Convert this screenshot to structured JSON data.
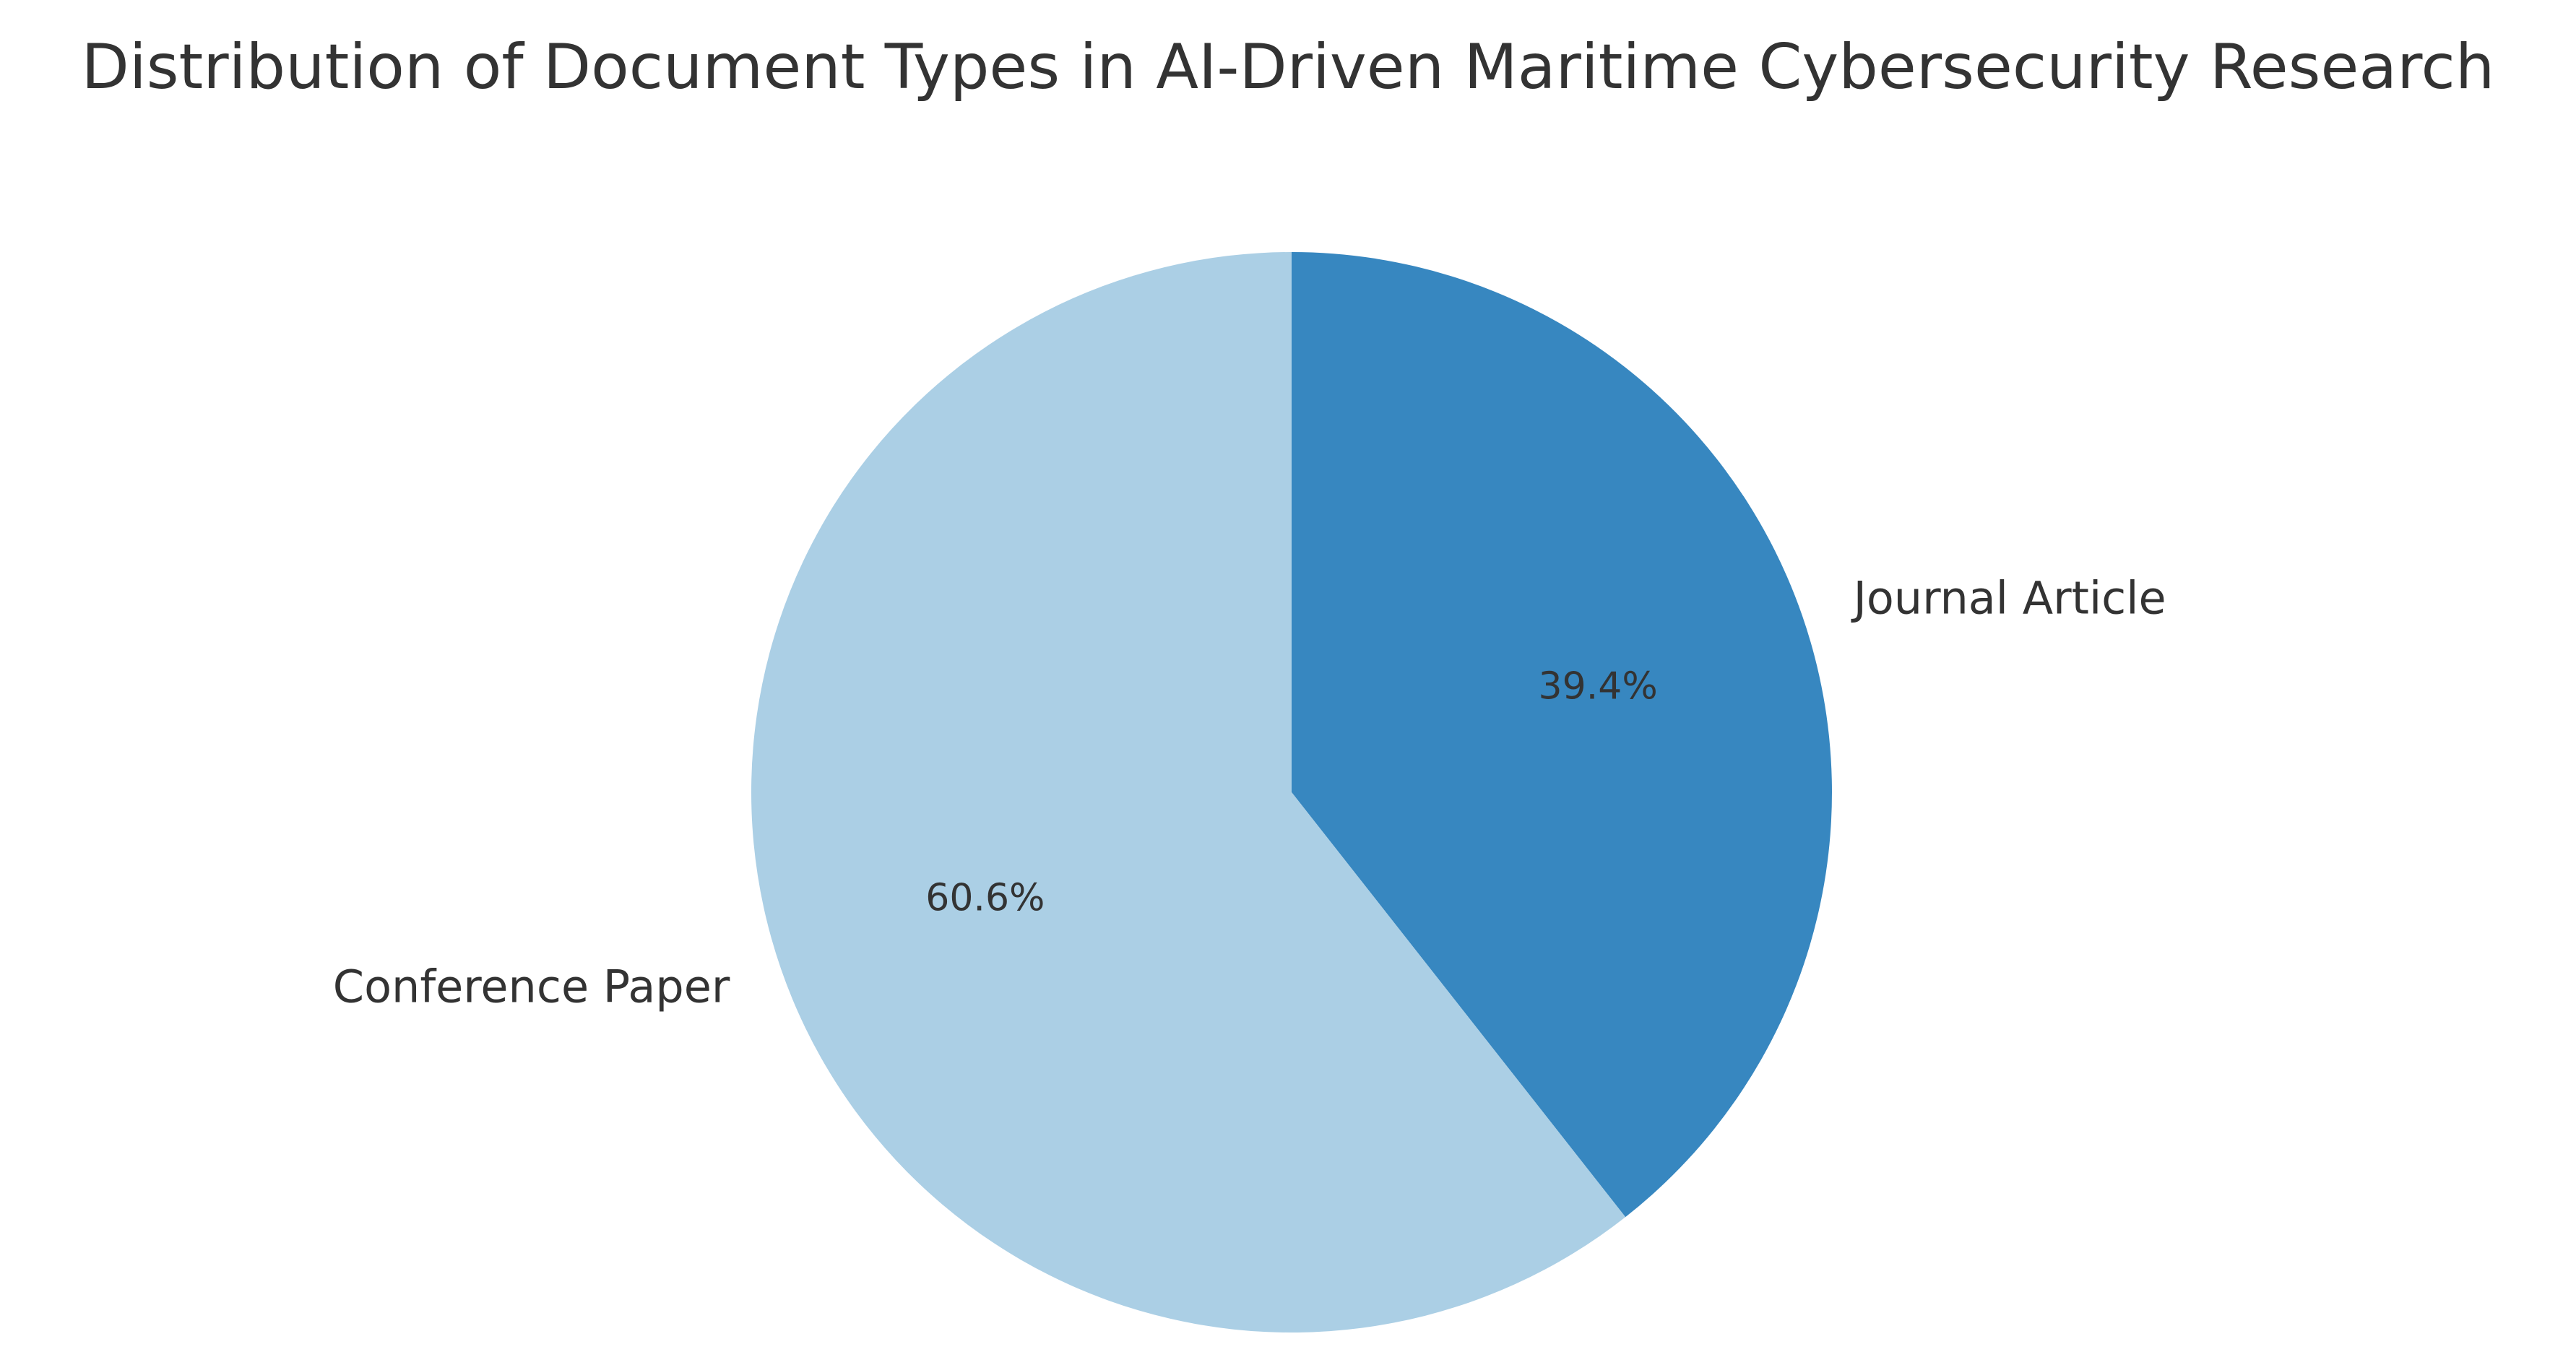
{
  "chart_data": {
    "type": "pie",
    "title": "Distribution of Document Types in AI-Driven Maritime Cybersecurity Research",
    "slices": [
      {
        "label": "Journal Article",
        "value": 39.4,
        "pct_label": "39.4%",
        "color": "#3787c0"
      },
      {
        "label": "Conference Paper",
        "value": 60.6,
        "pct_label": "60.6%",
        "color": "#abcfe5"
      }
    ],
    "start_angle_deg": 90,
    "direction": "clockwise",
    "legend": "none",
    "text_color": "#333333"
  }
}
